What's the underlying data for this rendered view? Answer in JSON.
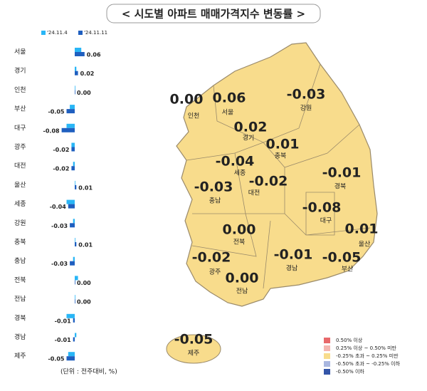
{
  "chart_data": {
    "type": "bar",
    "orientation": "horizontal",
    "title": "< 시도별 아파트 매매가격지수 변동률 >",
    "note": "(단위 : 전주대비, %)",
    "categories": [
      "서울",
      "경기",
      "인천",
      "부산",
      "대구",
      "광주",
      "대전",
      "울산",
      "세종",
      "강원",
      "충북",
      "충남",
      "전북",
      "전남",
      "경북",
      "경남",
      "제주"
    ],
    "series": [
      {
        "name": "'24.11.4",
        "color": "#29b6f6",
        "values": [
          0.04,
          0.01,
          0.0,
          -0.03,
          -0.05,
          -0.02,
          -0.01,
          0.0,
          -0.05,
          -0.01,
          0.0,
          -0.01,
          0.02,
          0.0,
          -0.05,
          0.01,
          -0.04
        ]
      },
      {
        "name": "'24.11.11",
        "color": "#1f5fbf",
        "values": [
          0.06,
          0.02,
          0.0,
          -0.05,
          -0.08,
          -0.02,
          -0.02,
          0.01,
          -0.04,
          -0.03,
          0.01,
          -0.03,
          0.0,
          0.0,
          -0.01,
          -0.01,
          -0.05
        ],
        "value_labels": [
          "0.06",
          "0.02",
          "0.00",
          "-0.05",
          "-0.08",
          "-0.02",
          "-0.02",
          "0.01",
          "-0.04",
          "-0.03",
          "0.01",
          "-0.03",
          "0.00",
          "0.00",
          "-0.01",
          "-0.01",
          "-0.05"
        ]
      }
    ],
    "map": {
      "region_color": "#f8dc8c",
      "legend": [
        {
          "label": "0.50% 이상",
          "color": "#e8696b"
        },
        {
          "label": "0.25% 이상 ~ 0.50% 미만",
          "color": "#f4b6b0"
        },
        {
          "label": "-0.25% 초과 ~ 0.25% 미만",
          "color": "#f8dc8c"
        },
        {
          "label": "-0.50% 초과 ~ -0.25% 이하",
          "color": "#a9b7e0"
        },
        {
          "label": "-0.50% 이하",
          "color": "#3355a8"
        }
      ]
    }
  }
}
